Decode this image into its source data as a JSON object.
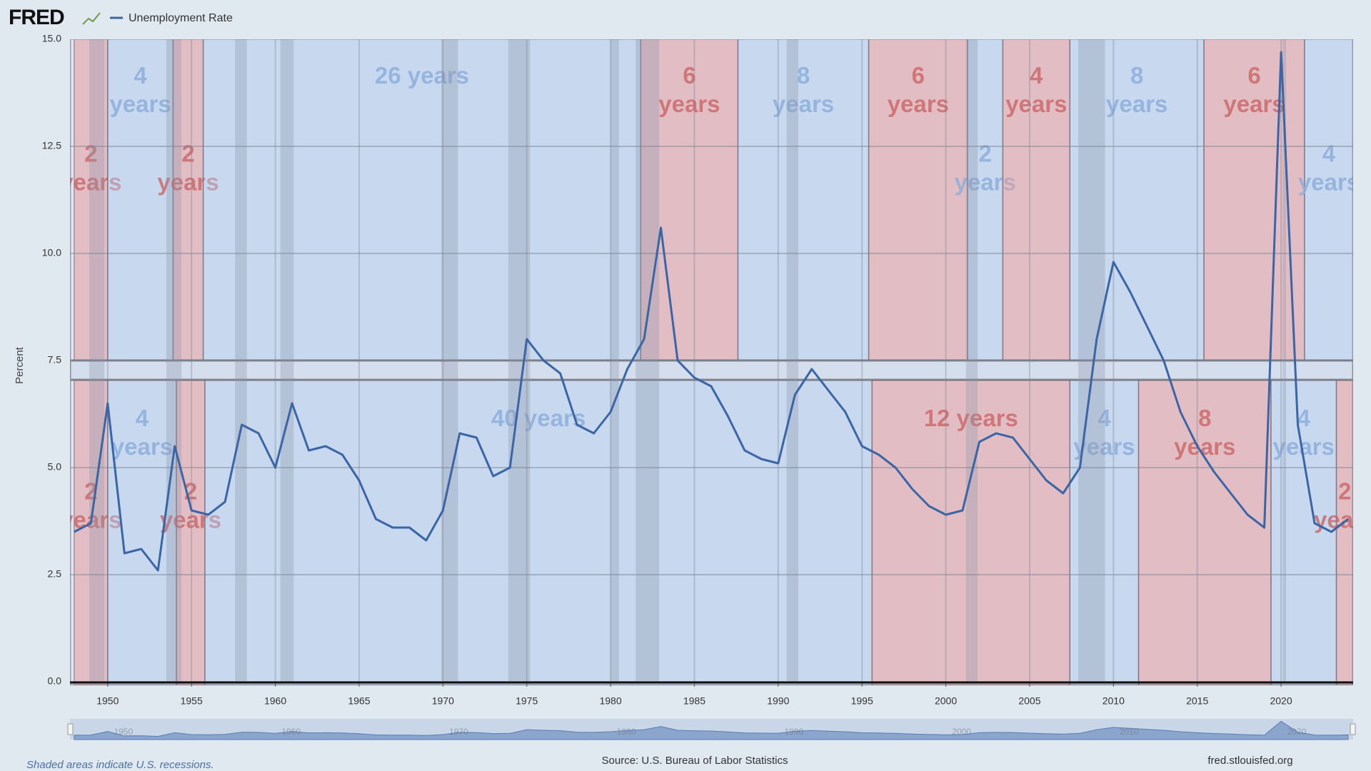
{
  "chart_data": {
    "type": "line",
    "brand": "FRED",
    "y_label": "Percent",
    "source": "Source: U.S. Bureau of Labor Statistics",
    "note": "Shaded areas indicate U.S. recessions.",
    "site": "fred.stlouisfed.org",
    "x": [
      1948,
      1949,
      1950,
      1951,
      1952,
      1953,
      1954,
      1955,
      1956,
      1957,
      1958,
      1959,
      1960,
      1961,
      1962,
      1963,
      1964,
      1965,
      1966,
      1967,
      1968,
      1969,
      1970,
      1971,
      1972,
      1973,
      1974,
      1975,
      1976,
      1977,
      1978,
      1979,
      1980,
      1981,
      1982,
      1983,
      1984,
      1985,
      1986,
      1987,
      1988,
      1989,
      1990,
      1991,
      1992,
      1993,
      1994,
      1995,
      1996,
      1997,
      1998,
      1999,
      2000,
      2001,
      2002,
      2003,
      2004,
      2005,
      2006,
      2007,
      2008,
      2009,
      2010,
      2011,
      2012,
      2013,
      2014,
      2015,
      2016,
      2017,
      2018,
      2019,
      2020,
      2021,
      2022,
      2023,
      2024
    ],
    "series": [
      {
        "name": "Unemployment Rate",
        "color": "#3a66a5",
        "values": [
          3.5,
          3.7,
          6.5,
          3.0,
          3.1,
          2.6,
          5.5,
          4.0,
          3.9,
          4.2,
          6.0,
          5.8,
          5.0,
          6.5,
          5.4,
          5.5,
          5.3,
          4.7,
          3.8,
          3.6,
          3.6,
          3.3,
          4.0,
          5.8,
          5.7,
          4.8,
          5.0,
          8.0,
          7.5,
          7.2,
          6.0,
          5.8,
          6.3,
          7.3,
          8.0,
          10.6,
          7.5,
          7.1,
          6.9,
          6.2,
          5.4,
          5.2,
          5.1,
          6.7,
          7.3,
          6.8,
          6.3,
          5.5,
          5.3,
          5.0,
          4.5,
          4.1,
          3.9,
          4.0,
          5.6,
          5.8,
          5.7,
          5.2,
          4.7,
          4.4,
          5.0,
          8.0,
          9.8,
          9.1,
          8.3,
          7.5,
          6.3,
          5.5,
          4.9,
          4.4,
          3.9,
          3.6,
          14.7,
          6.0,
          3.7,
          3.5,
          3.8
        ]
      }
    ],
    "xlim": [
      1947.75,
      2024.3
    ],
    "ylim": [
      0,
      15
    ],
    "xticks": [
      1950,
      1955,
      1960,
      1965,
      1970,
      1975,
      1980,
      1985,
      1990,
      1995,
      2000,
      2005,
      2010,
      2015,
      2020
    ],
    "yticks": [
      {
        "value": 15,
        "label": "15.0"
      },
      12.5,
      {
        "value": 10,
        "label": "10.0"
      },
      7.5,
      {
        "value": 5,
        "label": "5.0"
      },
      2.5,
      {
        "value": 0,
        "label": "0.0"
      }
    ],
    "grid": true,
    "recessions": [
      [
        1948.9,
        1949.8
      ],
      [
        1953.5,
        1954.4
      ],
      [
        1957.6,
        1958.3
      ],
      [
        1960.3,
        1961.1
      ],
      [
        1969.9,
        1970.9
      ],
      [
        1973.9,
        1975.2
      ],
      [
        1980.0,
        1980.5
      ],
      [
        1981.5,
        1982.9
      ],
      [
        1990.5,
        1991.2
      ],
      [
        2001.2,
        2001.9
      ],
      [
        2007.9,
        2009.5
      ],
      [
        2020.1,
        2020.3
      ]
    ],
    "recession_color": "rgba(140,150,170,0.33)",
    "navigator_ticks": [
      1950,
      1960,
      1970,
      1980,
      1990,
      2000,
      2010,
      2020
    ],
    "overlay": {
      "colors": {
        "red": "rgba(232,150,150,0.5)",
        "blue": "rgba(175,200,235,0.45)"
      },
      "top": [
        {
          "start": 1948,
          "end": 1950,
          "party": "red",
          "lines": [
            "2",
            "years"
          ]
        },
        {
          "start": 1950,
          "end": 1953.9,
          "party": "blue",
          "lines": [
            "4",
            "years"
          ]
        },
        {
          "start": 1953.9,
          "end": 1955.7,
          "party": "red",
          "lines": [
            "2",
            "years"
          ]
        },
        {
          "start": 1955.7,
          "end": 1981.8,
          "party": "blue",
          "lines": [
            "26 years"
          ]
        },
        {
          "start": 1981.8,
          "end": 1987.6,
          "party": "red",
          "lines": [
            "6",
            "years"
          ]
        },
        {
          "start": 1987.6,
          "end": 1995.4,
          "party": "blue",
          "lines": [
            "8",
            "years"
          ]
        },
        {
          "start": 1995.4,
          "end": 2001.3,
          "party": "red",
          "lines": [
            "6",
            "years"
          ]
        },
        {
          "start": 2001.3,
          "end": 2003.4,
          "party": "blue",
          "lines": [
            "2",
            "years"
          ]
        },
        {
          "start": 2003.4,
          "end": 2007.4,
          "party": "red",
          "lines": [
            "4",
            "years"
          ]
        },
        {
          "start": 2007.4,
          "end": 2015.4,
          "party": "blue",
          "lines": [
            "8",
            "years"
          ]
        },
        {
          "start": 2015.4,
          "end": 2021.4,
          "party": "red",
          "lines": [
            "6",
            "years"
          ]
        },
        {
          "start": 2021.4,
          "end": 2025.5,
          "party": "blue",
          "lines": [
            "4",
            "years"
          ]
        }
      ],
      "bottom": [
        {
          "start": 1948,
          "end": 1950,
          "party": "red",
          "lines": [
            "2",
            "years"
          ]
        },
        {
          "start": 1950,
          "end": 1954.1,
          "party": "blue",
          "lines": [
            "4",
            "years"
          ]
        },
        {
          "start": 1954.1,
          "end": 1955.8,
          "party": "red",
          "lines": [
            "2",
            "years"
          ]
        },
        {
          "start": 1955.8,
          "end": 1995.6,
          "party": "blue",
          "lines": [
            "40 years"
          ]
        },
        {
          "start": 1995.6,
          "end": 2007.4,
          "party": "red",
          "lines": [
            "12 years"
          ]
        },
        {
          "start": 2007.4,
          "end": 2011.5,
          "party": "blue",
          "lines": [
            "4",
            "years"
          ]
        },
        {
          "start": 2011.5,
          "end": 2019.4,
          "party": "red",
          "lines": [
            "8",
            "years"
          ]
        },
        {
          "start": 2019.4,
          "end": 2023.3,
          "party": "blue",
          "lines": [
            "4",
            "years"
          ]
        },
        {
          "start": 2023.3,
          "end": 2026,
          "party": "red",
          "lines": [
            "2",
            "years"
          ]
        }
      ]
    }
  }
}
